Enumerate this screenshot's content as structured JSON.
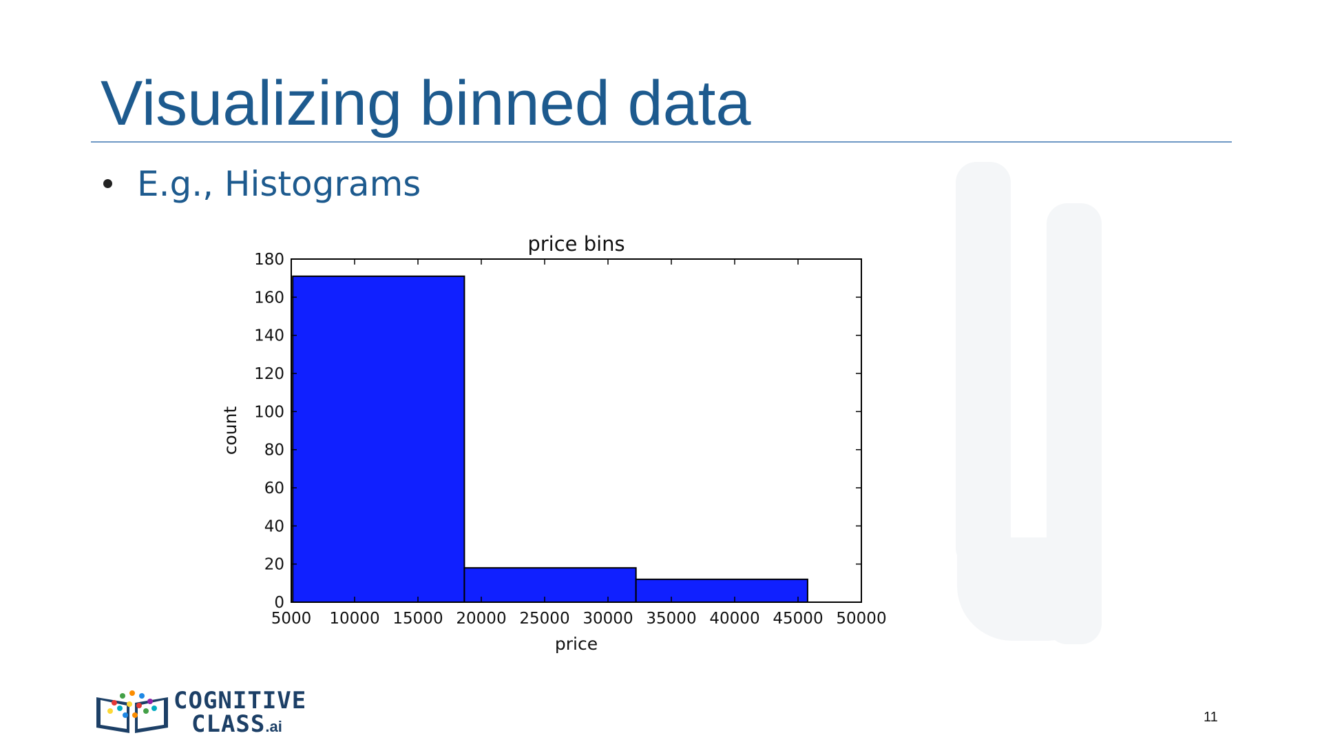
{
  "slide": {
    "title": "Visualizing binned data",
    "bullet": "E.g., Histograms",
    "page_number": "11"
  },
  "logo": {
    "line1": "COGNITIVE",
    "line2": "CLASS",
    "suffix": ".ai"
  },
  "colors": {
    "title": "#1d5a8e",
    "bar_fill": "#1020ff",
    "bar_stroke": "#000000"
  },
  "chart_data": {
    "type": "bar",
    "title": "price bins",
    "xlabel": "price",
    "ylabel": "count",
    "xlim": [
      5000,
      50000
    ],
    "ylim": [
      0,
      180
    ],
    "xticks": [
      5000,
      10000,
      15000,
      20000,
      25000,
      30000,
      35000,
      40000,
      45000,
      50000
    ],
    "yticks": [
      0,
      20,
      40,
      60,
      80,
      100,
      120,
      140,
      160,
      180
    ],
    "bins": [
      {
        "start": 5118,
        "end": 18664,
        "count": 171
      },
      {
        "start": 18664,
        "end": 32210,
        "count": 18
      },
      {
        "start": 32210,
        "end": 45756,
        "count": 12
      }
    ]
  }
}
